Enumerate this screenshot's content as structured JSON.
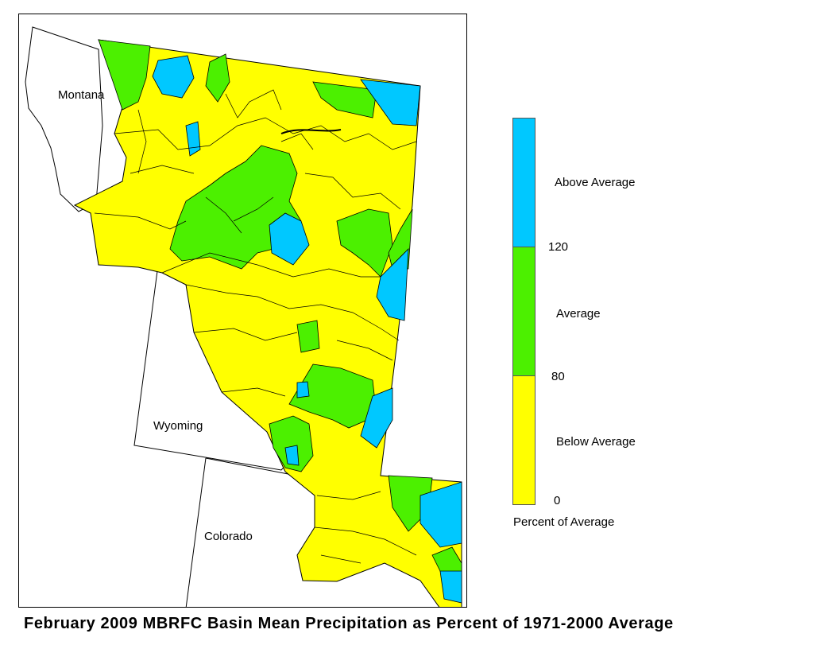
{
  "title": "February 2009 MBRFC Basin Mean Precipitation as Percent of 1971-2000 Average",
  "states": {
    "montana": "Montana",
    "wyoming": "Wyoming",
    "colorado": "Colorado"
  },
  "legend": {
    "title": "Percent of Average",
    "classes": [
      {
        "label": "Above Average",
        "min": 120,
        "color": "#00c8ff"
      },
      {
        "label": "Average",
        "min": 80,
        "max": 120,
        "color": "#4cf000"
      },
      {
        "label": "Below Average",
        "min": 0,
        "max": 80,
        "color": "#ffff00"
      }
    ],
    "breaks": [
      "120",
      "80",
      "0"
    ]
  },
  "colors": {
    "above": "#00c8ff",
    "average": "#4cf000",
    "below": "#ffff00",
    "boundary": "#000000"
  }
}
